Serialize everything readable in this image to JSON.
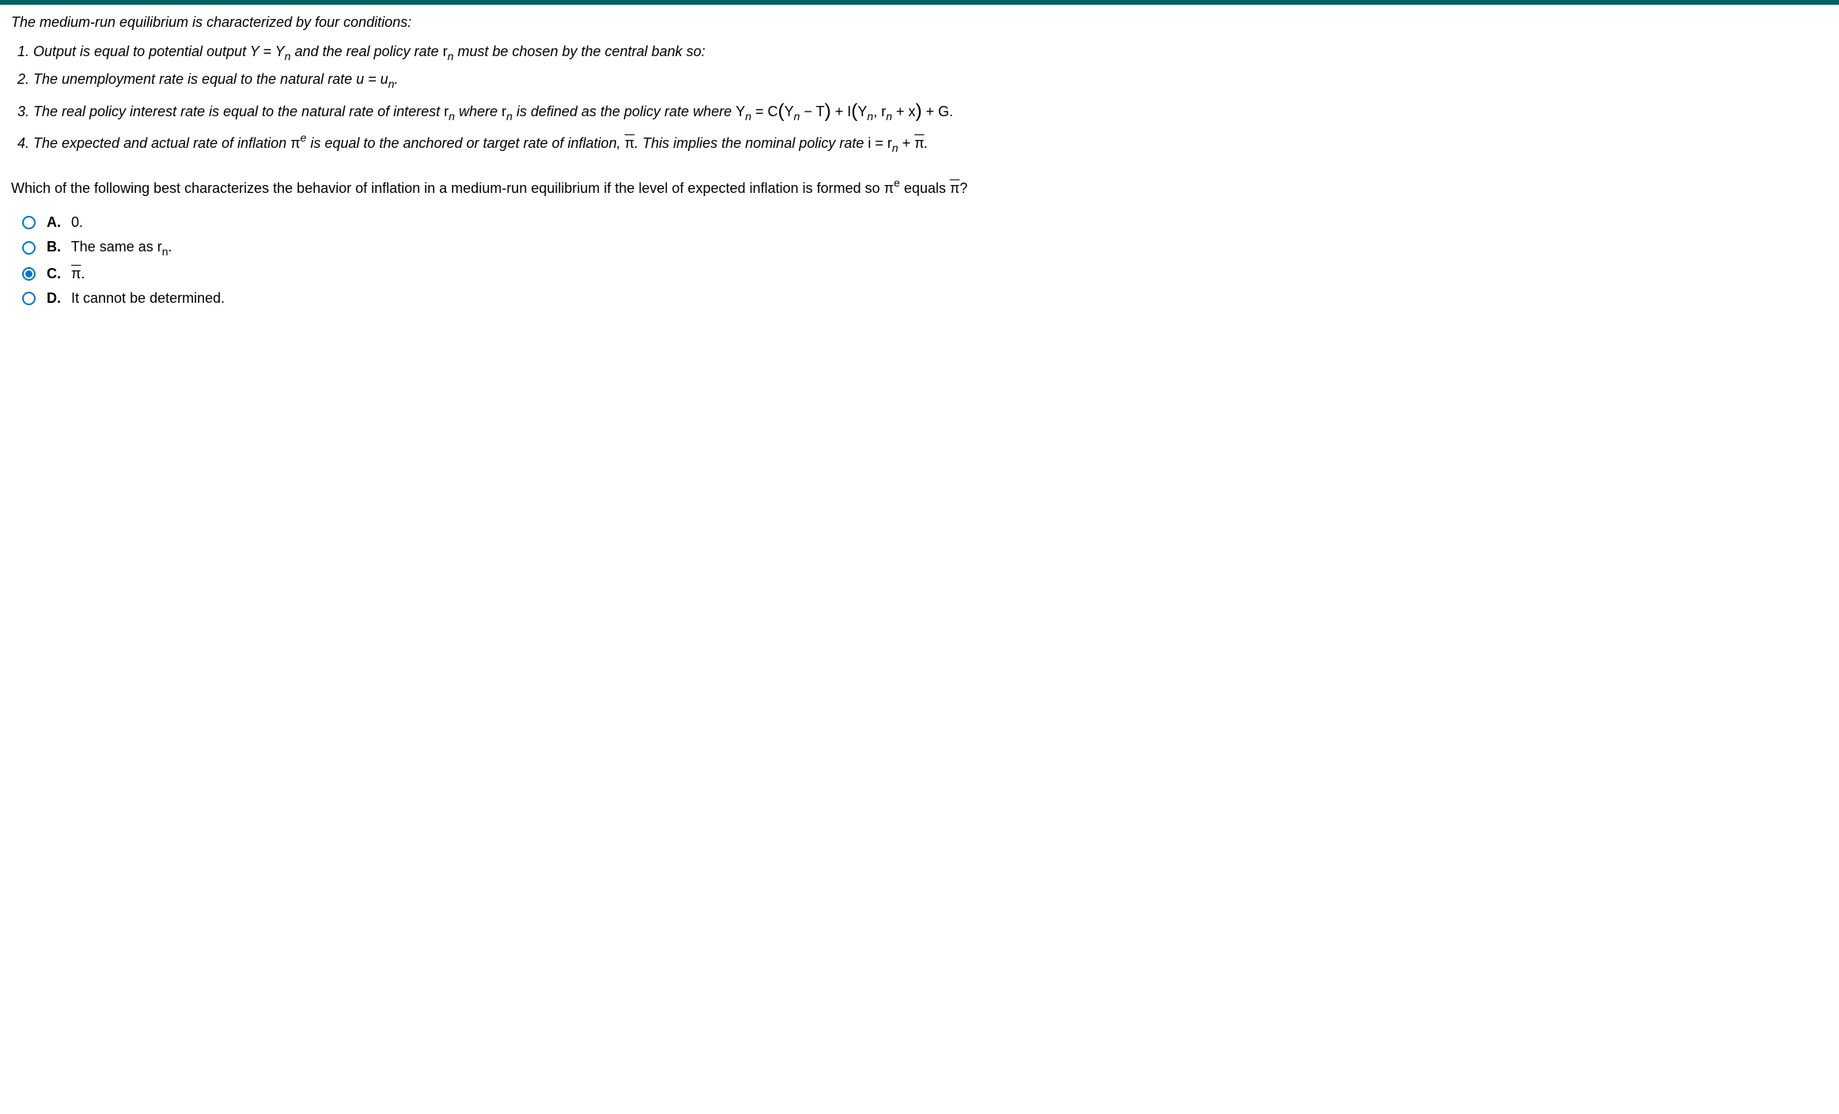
{
  "colors": {
    "topbar": "#006060",
    "radio": "#0077c8",
    "text": "#000000",
    "background": "#ffffff"
  },
  "intro": "The medium-run equilibrium is characterized by four conditions:",
  "conditions": {
    "c1_a": "Output is equal to potential output Y = Y",
    "c1_b": " and the real policy rate ",
    "c1_c": " must be chosen by the central bank so:",
    "c2_a": "The unemployment rate is equal to the natural rate u = u",
    "c3_a": "The real policy interest rate is equal to the natural rate of interest ",
    "c3_b": " where ",
    "c3_c": " is defined as the policy rate where ",
    "c3_Yn": "Y",
    "c3_eq": " = ",
    "c3_C": "C",
    "c3_minusT": " − T",
    "c3_plus": "  +  ",
    "c3_I": "I",
    "c3_comma": ", ",
    "c3_plusx": " + x",
    "c3_plusG": "  +  G.",
    "c4_a": "The expected and actual rate of inflation ",
    "c4_b": " is equal to the anchored or target rate of inflation, ",
    "c4_c": ". This implies the nominal policy rate ",
    "c4_i_eq": "i = ",
    "c4_plus": " + "
  },
  "sym": {
    "n": "n",
    "r": "r",
    "pi": "π",
    "e": "e",
    "period": "."
  },
  "question_a": "Which of the following best characterizes the behavior of inflation in a medium-run equilibrium if the level of expected inflation is formed so ",
  "question_b": " equals ",
  "question_c": "?",
  "options": {
    "A": {
      "label": "A.",
      "text": "0."
    },
    "B": {
      "label": "B.",
      "pre": "The same as ",
      "post": "."
    },
    "C": {
      "label": "C.",
      "post": "."
    },
    "D": {
      "label": "D.",
      "text": "It cannot be determined."
    }
  },
  "selected": "C"
}
